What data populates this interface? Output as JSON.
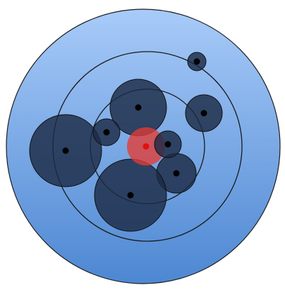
{
  "colors": {
    "background": "#ffffff",
    "disc_light": "#a8cbf9",
    "disc_dark": "#4d87d2",
    "disc_outline": "#1e1e1e",
    "orbit_stroke": "#1a1a1a",
    "body_fill": "#1c2b45",
    "body_outline": "#111111",
    "center_dot": "#000000",
    "focus_fill": "#e33b33",
    "focus_dot": "#e01010"
  },
  "bodies": [
    {
      "id": "body-upper-center",
      "size": "large"
    },
    {
      "id": "body-top-right-small",
      "size": "tiny"
    },
    {
      "id": "body-right",
      "size": "medium"
    },
    {
      "id": "body-left-large",
      "size": "large"
    },
    {
      "id": "body-left-small",
      "size": "small"
    },
    {
      "id": "body-center-small",
      "size": "small"
    },
    {
      "id": "body-lower-right",
      "size": "medium"
    },
    {
      "id": "body-bottom-large",
      "size": "large"
    }
  ],
  "focus": {
    "id": "focus-red",
    "color": "#e33b33"
  }
}
